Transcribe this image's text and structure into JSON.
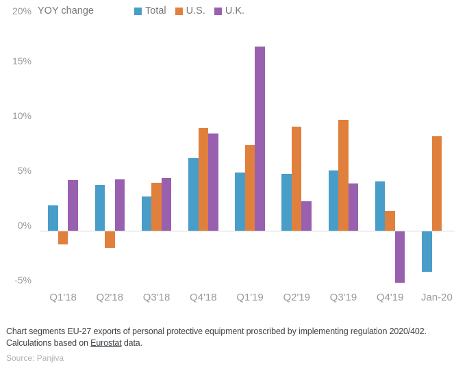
{
  "chart_data": {
    "type": "bar",
    "title": "YOY change",
    "categories": [
      "Q1'18",
      "Q2'18",
      "Q3'18",
      "Q4'18",
      "Q1'19",
      "Q2'19",
      "Q3'19",
      "Q4'19",
      "Jan-20"
    ],
    "series": [
      {
        "name": "Total",
        "color": "#489EC9",
        "values": [
          2.3,
          4.2,
          3.1,
          6.6,
          5.3,
          5.2,
          5.5,
          4.5,
          -3.7
        ]
      },
      {
        "name": "U.S.",
        "color": "#E0803C",
        "values": [
          -1.2,
          -1.5,
          4.4,
          9.4,
          7.8,
          9.5,
          10.1,
          1.8,
          8.6
        ]
      },
      {
        "name": "U.K.",
        "color": "#9860AE",
        "values": [
          4.6,
          4.7,
          4.8,
          8.9,
          16.8,
          2.7,
          4.3,
          -4.7,
          null
        ]
      }
    ],
    "xlabel": "",
    "ylabel": "YOY change",
    "ylim": [
      -5,
      20
    ],
    "yticks": [
      {
        "value": 20,
        "label": "20%"
      },
      {
        "value": 15,
        "label": "15%"
      },
      {
        "value": 10,
        "label": "10%"
      },
      {
        "value": 5,
        "label": "5%"
      },
      {
        "value": 0,
        "label": "0%"
      },
      {
        "value": -5,
        "label": "-5%"
      }
    ],
    "grid": false,
    "legend_position": "top"
  },
  "footer": {
    "note_line1": "Chart segments EU-27 exports of personal protective equipment proscribed by implementing regulation 2020/402.",
    "note_line2_prefix": "Calculations based on ",
    "note_link": "Eurostat",
    "note_line2_suffix": " data.",
    "source_label": "Source:",
    "source_value": "Panjiva"
  }
}
